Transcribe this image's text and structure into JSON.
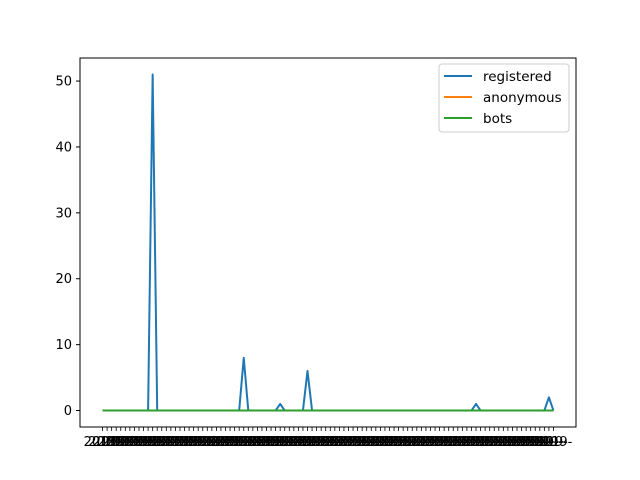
{
  "chart_data": {
    "type": "line",
    "title": "",
    "xlabel": "",
    "ylabel": "",
    "ylim": [
      -2.5,
      53.5
    ],
    "y_ticks": [
      0,
      10,
      20,
      30,
      40,
      50
    ],
    "x_tick_text": "2019-",
    "x_count": 100,
    "legend_position": "top-right",
    "grid": false,
    "series": [
      {
        "name": "registered",
        "color": "#1f77b4",
        "values": [
          0,
          0,
          0,
          0,
          0,
          0,
          0,
          0,
          0,
          0,
          0,
          51,
          0,
          0,
          0,
          0,
          0,
          0,
          0,
          0,
          0,
          0,
          0,
          0,
          0,
          0,
          0,
          0,
          0,
          0,
          0,
          8,
          0,
          0,
          0,
          0,
          0,
          0,
          0,
          1,
          0,
          0,
          0,
          0,
          0,
          6,
          0,
          0,
          0,
          0,
          0,
          0,
          0,
          0,
          0,
          0,
          0,
          0,
          0,
          0,
          0,
          0,
          0,
          0,
          0,
          0,
          0,
          0,
          0,
          0,
          0,
          0,
          0,
          0,
          0,
          0,
          0,
          0,
          0,
          0,
          0,
          0,
          1,
          0,
          0,
          0,
          0,
          0,
          0,
          0,
          0,
          0,
          0,
          0,
          0,
          0,
          0,
          0,
          2,
          0
        ]
      },
      {
        "name": "anonymous",
        "color": "#ff7f0e",
        "values": [
          0,
          0,
          0,
          0,
          0,
          0,
          0,
          0,
          0,
          0,
          0,
          0,
          0,
          0,
          0,
          0,
          0,
          0,
          0,
          0,
          0,
          0,
          0,
          0,
          0,
          0,
          0,
          0,
          0,
          0,
          0,
          0,
          0,
          0,
          0,
          0,
          0,
          0,
          0,
          0,
          0,
          0,
          0,
          0,
          0,
          0,
          0,
          0,
          0,
          0,
          0,
          0,
          0,
          0,
          0,
          0,
          0,
          0,
          0,
          0,
          0,
          0,
          0,
          0,
          0,
          0,
          0,
          0,
          0,
          0,
          0,
          0,
          0,
          0,
          0,
          0,
          0,
          0,
          0,
          0,
          0,
          0,
          0,
          0,
          0,
          0,
          0,
          0,
          0,
          0,
          0,
          0,
          0,
          0,
          0,
          0,
          0,
          0,
          0,
          0
        ]
      },
      {
        "name": "bots",
        "color": "#2ca02c",
        "values": [
          0,
          0,
          0,
          0,
          0,
          0,
          0,
          0,
          0,
          0,
          0,
          0,
          0,
          0,
          0,
          0,
          0,
          0,
          0,
          0,
          0,
          0,
          0,
          0,
          0,
          0,
          0,
          0,
          0,
          0,
          0,
          0,
          0,
          0,
          0,
          0,
          0,
          0,
          0,
          0,
          0,
          0,
          0,
          0,
          0,
          0,
          0,
          0,
          0,
          0,
          0,
          0,
          0,
          0,
          0,
          0,
          0,
          0,
          0,
          0,
          0,
          0,
          0,
          0,
          0,
          0,
          0,
          0,
          0,
          0,
          0,
          0,
          0,
          0,
          0,
          0,
          0,
          0,
          0,
          0,
          0,
          0,
          0,
          0,
          0,
          0,
          0,
          0,
          0,
          0,
          0,
          0,
          0,
          0,
          0,
          0,
          0,
          0,
          0,
          0
        ]
      }
    ]
  }
}
